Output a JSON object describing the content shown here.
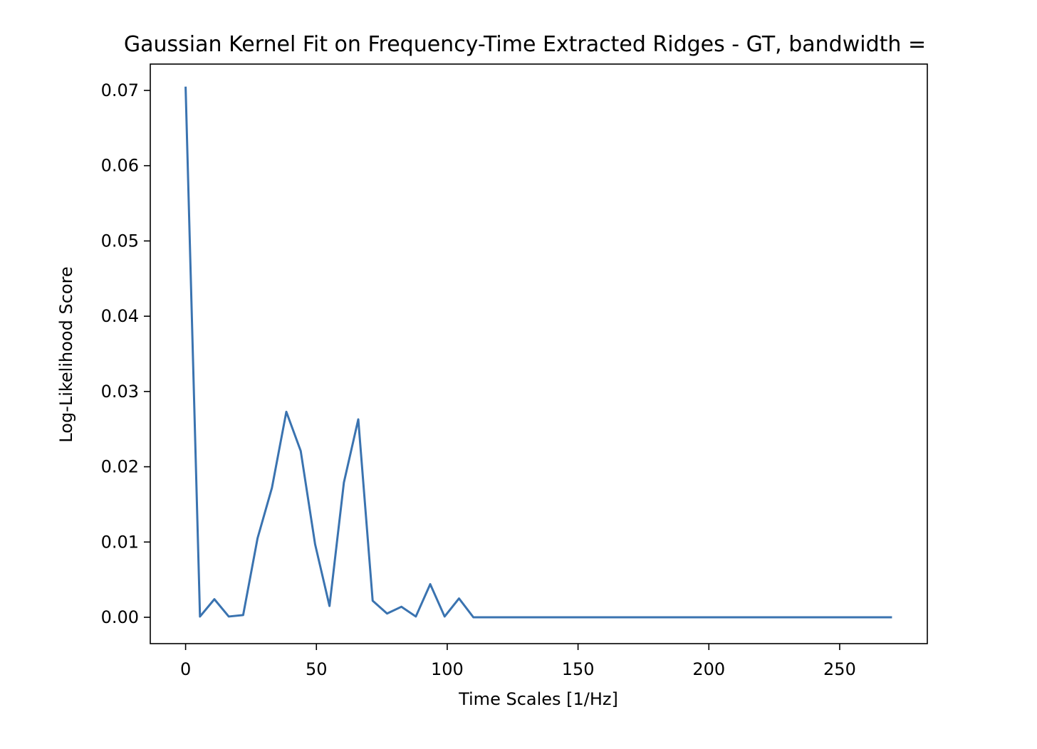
{
  "chart_data": {
    "type": "line",
    "title": "Gaussian Kernel Fit on Frequency-Time Extracted Ridges - GT, bandwidth =",
    "xlabel": "Time Scales [1/Hz]",
    "ylabel": "Log-Likelihood Score",
    "xlim": [
      -13.5,
      283.5
    ],
    "ylim": [
      -0.0035,
      0.0735
    ],
    "xticks": [
      0,
      50,
      100,
      150,
      200,
      250
    ],
    "xtick_labels": [
      "0",
      "50",
      "100",
      "150",
      "200",
      "250"
    ],
    "yticks": [
      0.0,
      0.01,
      0.02,
      0.03,
      0.04,
      0.05,
      0.06,
      0.07
    ],
    "ytick_labels": [
      "0.00",
      "0.01",
      "0.02",
      "0.03",
      "0.04",
      "0.05",
      "0.06",
      "0.07"
    ],
    "grid": false,
    "line_color": "#3a73b0",
    "series": [
      {
        "x": [
          0,
          5.5,
          11,
          16.5,
          22,
          27.5,
          33,
          38.5,
          44,
          49.5,
          55,
          60.5,
          66,
          71.5,
          77,
          82.5,
          88,
          93.5,
          99,
          104.5,
          110,
          115.5,
          121,
          126.5,
          132,
          137.5,
          143,
          148.5,
          154,
          159.5,
          165,
          170.5,
          176,
          181.5,
          187,
          192.5,
          198,
          203.5,
          209,
          214.5,
          220,
          225.5,
          231,
          236.5,
          242,
          247.5,
          253,
          258.5,
          264,
          270
        ],
        "y": [
          0.0705,
          0.0001,
          0.0024,
          0.0001,
          0.0003,
          0.0105,
          0.0172,
          0.0273,
          0.0221,
          0.0097,
          0.0015,
          0.0179,
          0.0263,
          0.0022,
          0.0005,
          0.0014,
          0.0001,
          0.0044,
          0.0001,
          0.0025,
          0.0,
          0.0,
          0.0,
          0.0,
          0.0,
          0.0,
          0.0,
          0.0,
          0.0,
          0.0,
          0.0,
          0.0,
          0.0,
          0.0,
          0.0,
          0.0,
          0.0,
          0.0,
          0.0,
          0.0,
          0.0,
          0.0,
          0.0,
          0.0,
          0.0,
          0.0,
          0.0,
          0.0,
          0.0,
          0.0
        ]
      }
    ]
  }
}
